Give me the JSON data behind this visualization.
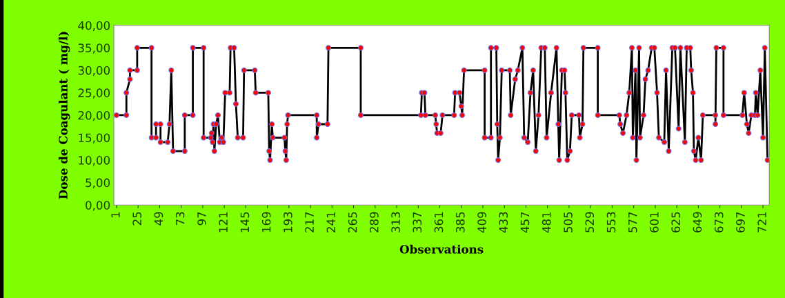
{
  "chart_data": {
    "type": "line",
    "xlabel": "Observations",
    "ylabel": "Dose de Coagulant ( mg/l)",
    "xlim": [
      -2,
      728
    ],
    "xticks": [
      {
        "value": 1,
        "label": "1"
      },
      {
        "value": 25,
        "label": "25"
      },
      {
        "value": 49,
        "label": "49"
      },
      {
        "value": 73,
        "label": "73"
      },
      {
        "value": 97,
        "label": "97"
      },
      {
        "value": 121,
        "label": "121"
      },
      {
        "value": 145,
        "label": "145"
      },
      {
        "value": 169,
        "label": "169"
      },
      {
        "value": 193,
        "label": "193"
      },
      {
        "value": 217,
        "label": "217"
      },
      {
        "value": 241,
        "label": "241"
      },
      {
        "value": 265,
        "label": "265"
      },
      {
        "value": 289,
        "label": "289"
      },
      {
        "value": 313,
        "label": "313"
      },
      {
        "value": 337,
        "label": "337"
      },
      {
        "value": 361,
        "label": "361"
      },
      {
        "value": 385,
        "label": "385"
      },
      {
        "value": 409,
        "label": "409"
      },
      {
        "value": 433,
        "label": "433"
      },
      {
        "value": 457,
        "label": "457"
      },
      {
        "value": 481,
        "label": "481"
      },
      {
        "value": 505,
        "label": "505"
      },
      {
        "value": 529,
        "label": "529"
      },
      {
        "value": 553,
        "label": "553"
      },
      {
        "value": 577,
        "label": "577"
      },
      {
        "value": 601,
        "label": "601"
      },
      {
        "value": 625,
        "label": "625"
      },
      {
        "value": 649,
        "label": "649"
      },
      {
        "value": 673,
        "label": "673"
      },
      {
        "value": 697,
        "label": "697"
      },
      {
        "value": 721,
        "label": "721"
      }
    ],
    "ylim": [
      0,
      40
    ],
    "yticks": [
      {
        "value": 0,
        "label": "0,00"
      },
      {
        "value": 5,
        "label": "5,00"
      },
      {
        "value": 10,
        "label": "10,00"
      },
      {
        "value": 15,
        "label": "15,00"
      },
      {
        "value": 20,
        "label": "20,00"
      },
      {
        "value": 25,
        "label": "25,00"
      },
      {
        "value": 30,
        "label": "30,00"
      },
      {
        "value": 35,
        "label": "35,00"
      },
      {
        "value": 40,
        "label": "40,00"
      }
    ],
    "marker": "circle",
    "line_style": "solid",
    "series": [
      {
        "color": "#ff0000",
        "x": [
          1,
          12,
          12,
          16,
          16,
          24,
          24,
          40,
          40,
          45,
          45,
          50,
          50,
          58,
          60,
          62,
          64,
          77,
          77,
          86,
          86,
          98,
          98,
          106,
          107,
          108,
          109,
          110,
          112,
          114,
          116,
          118,
          120,
          122,
          127,
          128,
          132,
          134,
          136,
          142,
          143,
          155,
          156,
          170,
          171,
          172,
          174,
          175,
          188,
          189,
          190,
          191,
          192,
          224,
          224,
          226,
          236,
          237,
          273,
          273,
          340,
          341,
          344,
          345,
          356,
          357,
          358,
          362,
          364,
          377,
          378,
          383,
          385,
          386,
          388,
          411,
          411,
          418,
          418,
          424,
          425,
          426,
          428,
          430,
          439,
          440,
          445,
          448,
          453,
          455,
          459,
          462,
          465,
          468,
          471,
          474,
          478,
          480,
          485,
          491,
          493,
          494,
          497,
          500,
          501,
          503,
          506,
          508,
          516,
          517,
          520,
          521,
          537,
          537,
          561,
          562,
          565,
          569,
          572,
          575,
          576,
          579,
          580,
          583,
          584,
          588,
          590,
          593,
          597,
          600,
          603,
          605,
          611,
          613,
          616,
          620,
          623,
          627,
          629,
          634,
          636,
          640,
          641,
          643,
          644,
          646,
          649,
          652,
          654,
          668,
          668,
          669,
          677,
          677,
          698,
          700,
          703,
          705,
          708,
          712,
          713,
          715,
          718,
          721,
          723,
          726
        ],
        "values": [
          20,
          20,
          25,
          28,
          30,
          30,
          35,
          35,
          15,
          15,
          18,
          18,
          14,
          14,
          18,
          30,
          12,
          12,
          20,
          20,
          35,
          35,
          15,
          15,
          16,
          14,
          18,
          12,
          18,
          20,
          14,
          15,
          14,
          25,
          25,
          35,
          35,
          22.5,
          15,
          15,
          30,
          30,
          25,
          25,
          12,
          10,
          18,
          15,
          15,
          12,
          10,
          18,
          20,
          20,
          15,
          18,
          18,
          35,
          35,
          20,
          20,
          25,
          25,
          20,
          20,
          18,
          16,
          16,
          20,
          20,
          25,
          25,
          22,
          20,
          30,
          30,
          15,
          15,
          35,
          35,
          18,
          10,
          15,
          30,
          30,
          20,
          28,
          30,
          35,
          15,
          14,
          25,
          30,
          12,
          20,
          35,
          35,
          15,
          25,
          35,
          18,
          10,
          30,
          30,
          25,
          10,
          12,
          20,
          20,
          15,
          18,
          35,
          35,
          20,
          20,
          18,
          16,
          20,
          25,
          35,
          15,
          30,
          10,
          35,
          15,
          20,
          28,
          30,
          35,
          35,
          25,
          15,
          14,
          30,
          12,
          35,
          35,
          17,
          35,
          14,
          35,
          35,
          30,
          25,
          12,
          10,
          15,
          10,
          20,
          20,
          18,
          35,
          35,
          20,
          20,
          25,
          18,
          16,
          20,
          20,
          25,
          20,
          30,
          15,
          35,
          10
        ]
      }
    ]
  }
}
